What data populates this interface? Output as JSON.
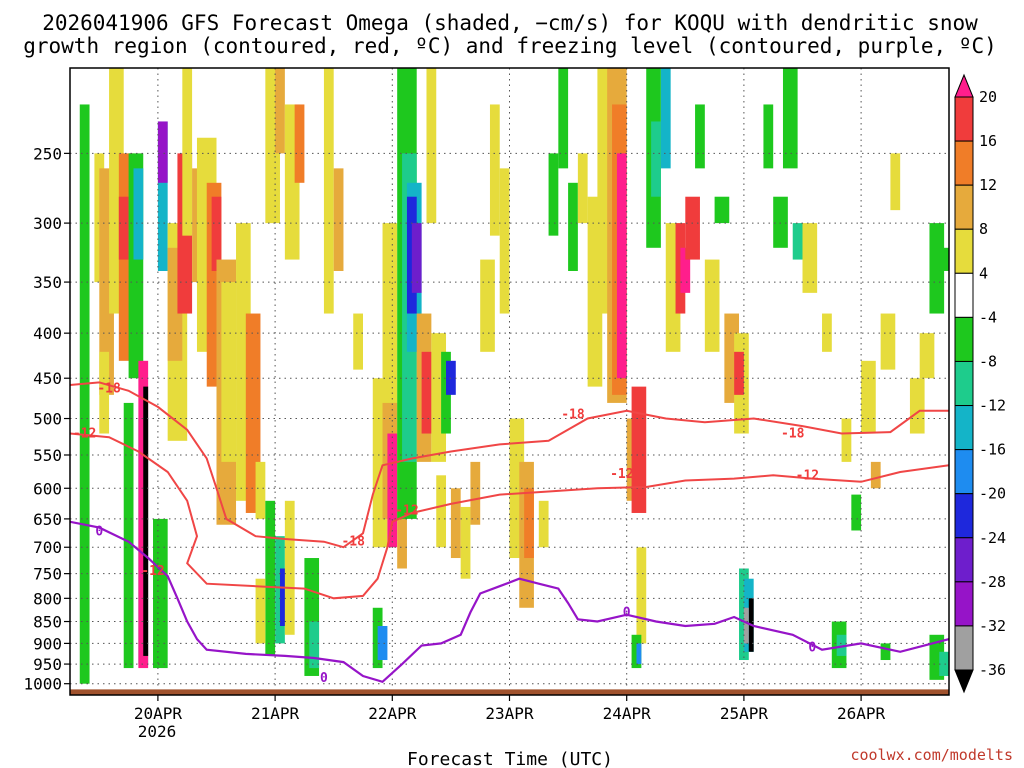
{
  "chart_data": {
    "type": "heatmap",
    "title_line1": "2026041906 GFS Forecast Omega (shaded, −cm/s) for KOQU with dendritic snow",
    "title_line2": "growth region (contoured, red, ºC) and freezing level (contoured, purple, ºC)",
    "xlabel": "Forecast Time (UTC)",
    "credit": "coolwx.com/modelts",
    "y_axis": {
      "ticks": [
        "250",
        "300",
        "350",
        "400",
        "450",
        "500",
        "550",
        "600",
        "650",
        "700",
        "750",
        "800",
        "850",
        "900",
        "950",
        "1000"
      ],
      "values": [
        250,
        300,
        350,
        400,
        450,
        500,
        550,
        600,
        650,
        700,
        750,
        800,
        850,
        900,
        950,
        1000
      ],
      "range_hpa": [
        200,
        1030
      ]
    },
    "x_axis": {
      "ticks": [
        "20APR",
        "21APR",
        "22APR",
        "23APR",
        "24APR",
        "25APR",
        "26APR"
      ],
      "year_label": "2026",
      "range_hours": [
        -18,
        162
      ],
      "tick_hours": [
        0,
        24,
        48,
        72,
        96,
        120,
        144
      ]
    },
    "colorbar": {
      "labels": [
        "20",
        "16",
        "12",
        "8",
        "4",
        "-4",
        "-8",
        "-12",
        "-16",
        "-20",
        "-24",
        "-28",
        "-32",
        "-36"
      ],
      "colors": [
        "#ff1e8c",
        "#f03c3c",
        "#f07d28",
        "#e6aa3c",
        "#e6dc3c",
        "#ffffff",
        "#1ec81e",
        "#1ecc8c",
        "#14b4c8",
        "#1e8cf0",
        "#1e28dc",
        "#6e1ecc",
        "#9614c8",
        "#a0a0a0",
        "#000000"
      ]
    },
    "contour_labels": {
      "dgz_red": [
        "-18",
        "-12",
        "-18",
        "-12",
        "-12",
        "-18",
        "-12",
        "-18",
        "-12"
      ],
      "freezing_purple": [
        "0",
        "0",
        "0",
        "0"
      ]
    },
    "dgz_minus12": [
      [
        -18,
        520
      ],
      [
        -10,
        525
      ],
      [
        -4,
        545
      ],
      [
        2,
        575
      ],
      [
        6,
        620
      ],
      [
        8,
        680
      ],
      [
        6,
        730
      ],
      [
        10,
        770
      ],
      [
        20,
        775
      ],
      [
        30,
        780
      ],
      [
        36,
        800
      ],
      [
        42,
        795
      ],
      [
        45,
        760
      ],
      [
        47,
        700
      ],
      [
        48,
        655
      ],
      [
        52,
        640
      ],
      [
        60,
        625
      ],
      [
        70,
        610
      ],
      [
        80,
        605
      ],
      [
        90,
        600
      ],
      [
        100,
        598
      ],
      [
        108,
        588
      ],
      [
        118,
        585
      ],
      [
        126,
        580
      ],
      [
        134,
        585
      ],
      [
        144,
        590
      ],
      [
        152,
        575
      ],
      [
        162,
        565
      ]
    ],
    "dgz_minus18": [
      [
        -18,
        458
      ],
      [
        -12,
        455
      ],
      [
        -6,
        465
      ],
      [
        0,
        485
      ],
      [
        6,
        515
      ],
      [
        10,
        555
      ],
      [
        12,
        600
      ],
      [
        14,
        650
      ],
      [
        20,
        680
      ],
      [
        26,
        685
      ],
      [
        34,
        690
      ],
      [
        38,
        700
      ],
      [
        42,
        675
      ],
      [
        44,
        610
      ],
      [
        46,
        565
      ],
      [
        52,
        555
      ],
      [
        60,
        545
      ],
      [
        70,
        535
      ],
      [
        80,
        530
      ],
      [
        88,
        500
      ],
      [
        96,
        490
      ],
      [
        104,
        500
      ],
      [
        112,
        505
      ],
      [
        122,
        500
      ],
      [
        132,
        510
      ],
      [
        140,
        520
      ],
      [
        150,
        518
      ],
      [
        156,
        490
      ],
      [
        162,
        490
      ]
    ],
    "freezing_level": [
      [
        -18,
        655
      ],
      [
        -12,
        665
      ],
      [
        -6,
        690
      ],
      [
        -2,
        720
      ],
      [
        2,
        755
      ],
      [
        4,
        800
      ],
      [
        6,
        850
      ],
      [
        8,
        890
      ],
      [
        10,
        915
      ],
      [
        18,
        925
      ],
      [
        26,
        930
      ],
      [
        32,
        935
      ],
      [
        38,
        945
      ],
      [
        42,
        980
      ],
      [
        46,
        995
      ],
      [
        50,
        950
      ],
      [
        54,
        905
      ],
      [
        58,
        900
      ],
      [
        62,
        880
      ],
      [
        64,
        830
      ],
      [
        66,
        790
      ],
      [
        70,
        775
      ],
      [
        74,
        760
      ],
      [
        78,
        770
      ],
      [
        82,
        780
      ],
      [
        84,
        810
      ],
      [
        86,
        845
      ],
      [
        90,
        850
      ],
      [
        96,
        835
      ],
      [
        102,
        850
      ],
      [
        108,
        860
      ],
      [
        114,
        855
      ],
      [
        118,
        840
      ],
      [
        122,
        860
      ],
      [
        130,
        880
      ],
      [
        136,
        915
      ],
      [
        144,
        900
      ],
      [
        152,
        920
      ],
      [
        162,
        890
      ]
    ],
    "ground": {
      "pressure_hpa": 1015,
      "color": "#a0522d"
    }
  }
}
